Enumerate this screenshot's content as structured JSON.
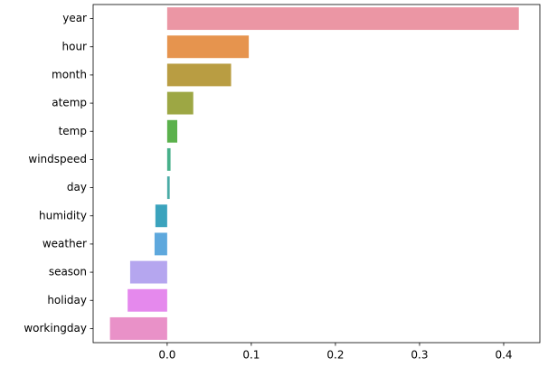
{
  "chart_data": {
    "type": "bar",
    "orientation": "horizontal",
    "categories": [
      "year",
      "hour",
      "month",
      "atemp",
      "temp",
      "windspeed",
      "day",
      "humidity",
      "weather",
      "season",
      "holiday",
      "workingday"
    ],
    "values": [
      0.418,
      0.097,
      0.076,
      0.031,
      0.012,
      0.004,
      0.003,
      -0.014,
      -0.015,
      -0.044,
      -0.047,
      -0.068
    ],
    "colors": [
      "#eb96a4",
      "#e6944e",
      "#b99d42",
      "#9da744",
      "#5bb14c",
      "#47b08a",
      "#4aaba6",
      "#3ba3bd",
      "#5ea8dd",
      "#b5a6ef",
      "#e589ed",
      "#e991c8"
    ],
    "xlim": [
      -0.088,
      0.443
    ],
    "xticks": [
      {
        "value": 0,
        "label": "0.0"
      },
      0.1,
      0.2,
      0.3,
      0.4
    ]
  }
}
